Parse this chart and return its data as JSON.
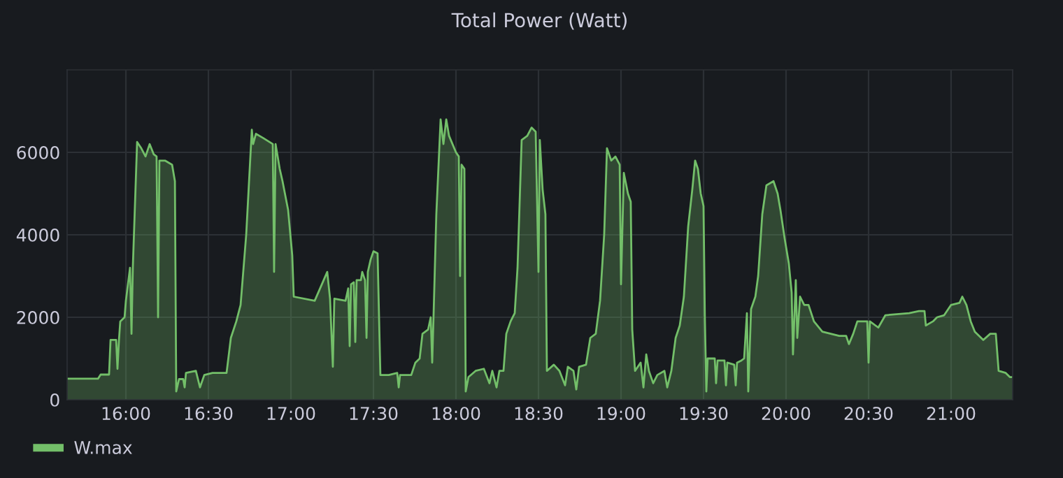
{
  "chart_data": {
    "type": "area",
    "title": "Total Power (Watt)",
    "x": [
      15.644,
      15.831,
      15.847,
      15.898,
      15.907,
      15.941,
      15.949,
      15.958,
      15.966,
      15.992,
      16.0,
      16.025,
      16.034,
      16.042,
      16.068,
      16.093,
      16.119,
      16.144,
      16.169,
      16.186,
      16.195,
      16.203,
      16.237,
      16.28,
      16.297,
      16.305,
      16.322,
      16.347,
      16.356,
      16.364,
      16.424,
      16.449,
      16.475,
      16.525,
      16.61,
      16.636,
      16.669,
      16.695,
      16.729,
      16.763,
      16.771,
      16.788,
      16.831,
      16.89,
      16.898,
      16.907,
      16.932,
      16.949,
      16.983,
      17.008,
      17.017,
      17.144,
      17.22,
      17.237,
      17.254,
      17.263,
      17.331,
      17.347,
      17.356,
      17.364,
      17.381,
      17.39,
      17.398,
      17.424,
      17.432,
      17.449,
      17.458,
      17.466,
      17.483,
      17.5,
      17.525,
      17.542,
      17.593,
      17.644,
      17.653,
      17.661,
      17.729,
      17.754,
      17.78,
      17.797,
      17.831,
      17.847,
      17.856,
      17.864,
      17.881,
      17.907,
      17.924,
      17.941,
      17.958,
      18.0,
      18.017,
      18.025,
      18.034,
      18.051,
      18.059,
      18.076,
      18.119,
      18.169,
      18.203,
      18.22,
      18.246,
      18.263,
      18.288,
      18.305,
      18.331,
      18.356,
      18.373,
      18.398,
      18.432,
      18.458,
      18.483,
      18.5,
      18.508,
      18.525,
      18.542,
      18.551,
      18.593,
      18.627,
      18.661,
      18.678,
      18.712,
      18.729,
      18.746,
      18.788,
      18.814,
      18.847,
      18.873,
      18.898,
      18.915,
      18.941,
      18.966,
      18.992,
      19.0,
      19.017,
      19.042,
      19.059,
      19.068,
      19.085,
      19.119,
      19.136,
      19.153,
      19.169,
      19.195,
      19.22,
      19.263,
      19.28,
      19.305,
      19.331,
      19.356,
      19.381,
      19.407,
      19.432,
      19.449,
      19.466,
      19.483,
      19.5,
      19.508,
      19.517,
      19.525,
      19.568,
      19.576,
      19.585,
      19.627,
      19.636,
      19.644,
      19.686,
      19.695,
      19.703,
      19.729,
      19.746,
      19.763,
      19.771,
      19.788,
      19.814,
      19.831,
      19.856,
      19.881,
      19.924,
      19.949,
      19.966,
      19.992,
      20.017,
      20.034,
      20.042,
      20.059,
      20.068,
      20.085,
      20.11,
      20.136,
      20.169,
      20.22,
      20.322,
      20.364,
      20.381,
      20.407,
      20.432,
      20.492,
      20.5,
      20.508,
      20.559,
      20.602,
      20.746,
      20.805,
      20.839,
      20.847,
      20.89,
      20.915,
      20.958,
      21.0,
      21.051,
      21.068,
      21.093,
      21.119,
      21.144,
      21.195,
      21.237,
      21.271,
      21.288,
      21.331,
      21.356,
      21.373
    ],
    "series": [
      {
        "name": "W.max",
        "color": "#73bf69",
        "values": [
          510,
          510,
          610,
          610,
          1450,
          1450,
          750,
          1450,
          1900,
          2000,
          2400,
          3200,
          1600,
          3200,
          6250,
          6100,
          5900,
          6200,
          5950,
          5900,
          2000,
          5800,
          5800,
          5700,
          5300,
          200,
          500,
          500,
          300,
          650,
          700,
          300,
          600,
          650,
          650,
          1500,
          1900,
          2300,
          4000,
          6550,
          6200,
          6450,
          6350,
          6200,
          3100,
          6200,
          5600,
          5300,
          4600,
          3500,
          2500,
          2400,
          3100,
          2450,
          800,
          2450,
          2400,
          2700,
          1300,
          2800,
          2850,
          1400,
          2900,
          2900,
          3100,
          2900,
          1500,
          3100,
          3400,
          3600,
          3550,
          600,
          600,
          650,
          300,
          600,
          600,
          900,
          1000,
          1600,
          1700,
          2000,
          900,
          2000,
          4500,
          6800,
          6200,
          6800,
          6400,
          6000,
          5900,
          3000,
          5700,
          5600,
          200,
          550,
          700,
          750,
          400,
          700,
          300,
          700,
          700,
          1600,
          1900,
          2100,
          3200,
          6300,
          6400,
          6600,
          6500,
          3100,
          6300,
          5100,
          4500,
          700,
          850,
          700,
          350,
          800,
          700,
          250,
          800,
          850,
          1500,
          1600,
          2400,
          4000,
          6100,
          5800,
          5900,
          5700,
          2800,
          5500,
          5000,
          4800,
          1700,
          700,
          900,
          300,
          1100,
          700,
          400,
          600,
          700,
          300,
          700,
          1500,
          1800,
          2500,
          4200,
          5100,
          5800,
          5600,
          5000,
          4700,
          2000,
          200,
          1000,
          1000,
          400,
          950,
          950,
          350,
          900,
          850,
          350,
          900,
          950,
          1000,
          2100,
          200,
          2200,
          2500,
          3000,
          4500,
          5200,
          5300,
          5000,
          4600,
          3900,
          3300,
          2600,
          1100,
          2900,
          1500,
          2500,
          2300,
          2300,
          1900,
          1650,
          1550,
          1550,
          1350,
          1600,
          1900,
          1900,
          900,
          1900,
          1750,
          2050,
          2100,
          2150,
          2150,
          1800,
          1900,
          2000,
          2050,
          2300,
          2350,
          2500,
          2300,
          1900,
          1650,
          1450,
          1600,
          1600,
          700,
          650,
          550,
          550
        ]
      }
    ],
    "xlim": [
      15.644,
      21.373
    ],
    "ylim": [
      0,
      8000
    ],
    "xticks": [
      {
        "value": 16,
        "label": "16:00"
      },
      {
        "value": 16.5,
        "label": "16:30"
      },
      {
        "value": 17,
        "label": "17:00"
      },
      {
        "value": 17.5,
        "label": "17:30"
      },
      {
        "value": 18,
        "label": "18:00"
      },
      {
        "value": 18.5,
        "label": "18:30"
      },
      {
        "value": 19,
        "label": "19:00"
      },
      {
        "value": 19.5,
        "label": "19:30"
      },
      {
        "value": 20,
        "label": "20:00"
      },
      {
        "value": 20.5,
        "label": "20:30"
      },
      {
        "value": 21,
        "label": "21:00"
      }
    ],
    "yticks": [
      0,
      2000,
      4000,
      6000
    ],
    "grid": true,
    "legend": "bottom left"
  }
}
